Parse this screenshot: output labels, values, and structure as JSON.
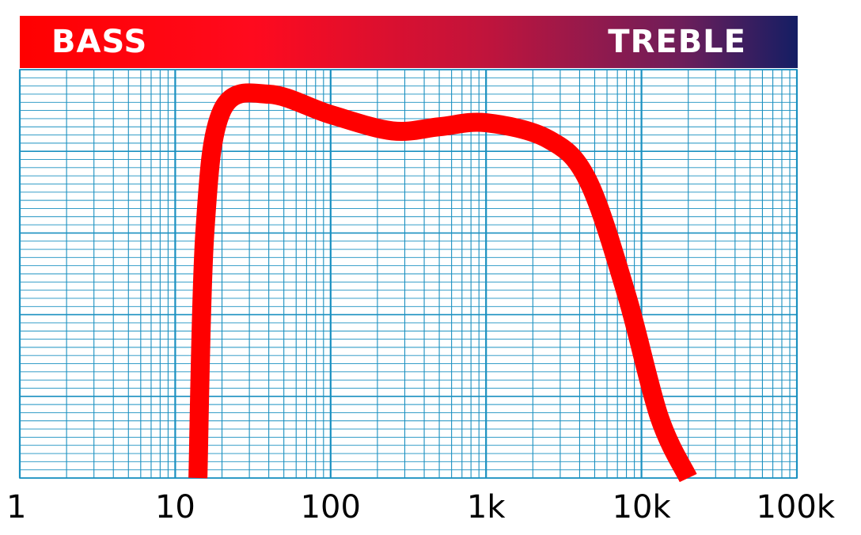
{
  "banner": {
    "left_label": "BASS",
    "right_label": "TREBLE",
    "gradient_colors": [
      "#ff0000",
      "#c0143c",
      "#141e64"
    ]
  },
  "chart_data": {
    "type": "line",
    "title": "",
    "xlabel": "",
    "ylabel": "",
    "x_scale": "log",
    "xlim": [
      1,
      100000
    ],
    "ylim": [
      0,
      100
    ],
    "grid": true,
    "grid_color": "#1a90c0",
    "x_tick_labels": [
      {
        "value": 1,
        "label": "1"
      },
      {
        "value": 10,
        "label": "10"
      },
      {
        "value": 100,
        "label": "100"
      },
      {
        "value": 1000,
        "label": "1k"
      },
      {
        "value": 10000,
        "label": "10k"
      },
      {
        "value": 100000,
        "label": "100k"
      }
    ],
    "series": [
      {
        "color": "#ff0000",
        "points": [
          {
            "x": 14,
            "y": 0
          },
          {
            "x": 15.5,
            "y": 60
          },
          {
            "x": 20,
            "y": 90
          },
          {
            "x": 40,
            "y": 94
          },
          {
            "x": 100,
            "y": 89
          },
          {
            "x": 250,
            "y": 85
          },
          {
            "x": 500,
            "y": 86
          },
          {
            "x": 1000,
            "y": 87
          },
          {
            "x": 2500,
            "y": 83
          },
          {
            "x": 4500,
            "y": 73
          },
          {
            "x": 8000,
            "y": 45
          },
          {
            "x": 13000,
            "y": 15
          },
          {
            "x": 20000,
            "y": 0
          }
        ]
      }
    ]
  }
}
